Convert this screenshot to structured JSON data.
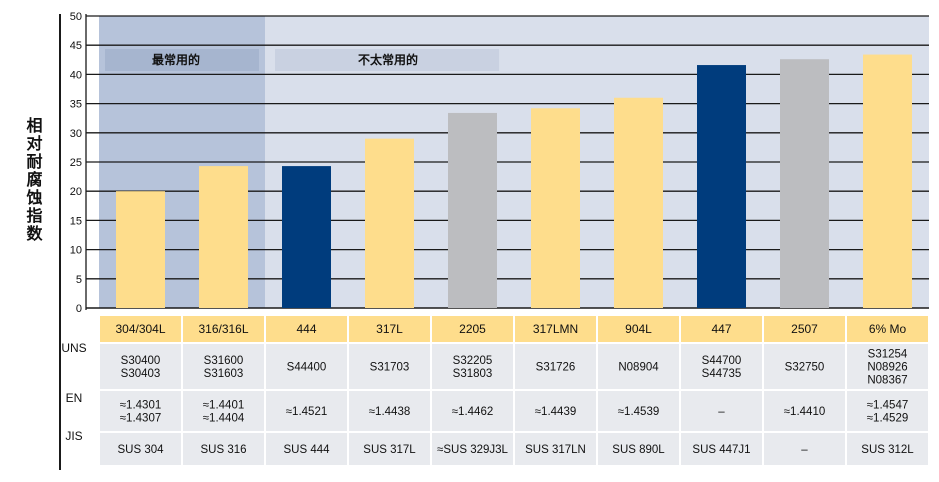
{
  "chart_data": {
    "type": "bar",
    "ylabel": "相对耐腐蚀指数",
    "ylim": [
      0,
      50
    ],
    "yticks": [
      0,
      5,
      10,
      15,
      20,
      25,
      30,
      35,
      40,
      45,
      50
    ],
    "grid": true,
    "bands": [
      {
        "label": "最常用的",
        "from": "304/304L",
        "to": "316/316L",
        "color": "#b6c3da"
      },
      {
        "label": "不太常用的",
        "from": "444",
        "to": "6% Mo",
        "color": "#d9dfeb"
      }
    ],
    "categories": [
      "304/304L",
      "316/316L",
      "444",
      "317L",
      "2205",
      "317LMN",
      "904L",
      "447",
      "2507",
      "6% Mo"
    ],
    "values": [
      20,
      24.3,
      24.3,
      29,
      33.4,
      34.2,
      36,
      41.6,
      42.6,
      43.4
    ],
    "colors": [
      "#fedd8c",
      "#fedd8c",
      "#003c7d",
      "#fedd8c",
      "#bcbdc0",
      "#fedd8c",
      "#fedd8c",
      "#003c7d",
      "#bcbdc0",
      "#fedd8c"
    ],
    "table": {
      "row_labels": [
        "UNS",
        "EN",
        "JIS"
      ],
      "rows": [
        [
          "S30400\nS30403",
          "S31600\nS31603",
          "S44400",
          "S31703",
          "S32205\nS31803",
          "S31726",
          "N08904",
          "S44700\nS44735",
          "S32750",
          "S31254\nN08926\nN08367"
        ],
        [
          "≈1.4301\n≈1.4307",
          "≈1.4401\n≈1.4404",
          "≈1.4521",
          "≈1.4438",
          "≈1.4462",
          "≈1.4439",
          "≈1.4539",
          "–",
          "≈1.4410",
          "≈1.4547\n≈1.4529"
        ],
        [
          "SUS 304",
          "SUS 316",
          "SUS 444",
          "SUS 317L",
          "≈SUS 329J3L",
          "SUS 317LN",
          "SUS 890L",
          "SUS 447J1",
          "–",
          "SUS 312L"
        ]
      ]
    }
  }
}
